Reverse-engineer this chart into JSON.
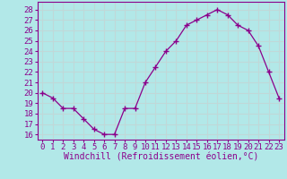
{
  "x": [
    0,
    1,
    2,
    3,
    4,
    5,
    6,
    7,
    8,
    9,
    10,
    11,
    12,
    13,
    14,
    15,
    16,
    17,
    18,
    19,
    20,
    21,
    22,
    23
  ],
  "y": [
    20.0,
    19.5,
    18.5,
    18.5,
    17.5,
    16.5,
    16.0,
    16.0,
    18.5,
    18.5,
    21.0,
    22.5,
    24.0,
    25.0,
    26.5,
    27.0,
    27.5,
    28.0,
    27.5,
    26.5,
    26.0,
    24.5,
    22.0,
    19.5
  ],
  "line_color": "#8b008b",
  "marker": "+",
  "marker_size": 4,
  "bg_color": "#b2e8e8",
  "grid_color": "#c0d8d8",
  "xlabel": "Windchill (Refroidissement éolien,°C)",
  "xlabel_color": "#8b008b",
  "ylim": [
    15.5,
    28.75
  ],
  "yticks": [
    16,
    17,
    18,
    19,
    20,
    21,
    22,
    23,
    24,
    25,
    26,
    27,
    28
  ],
  "xticks": [
    0,
    1,
    2,
    3,
    4,
    5,
    6,
    7,
    8,
    9,
    10,
    11,
    12,
    13,
    14,
    15,
    16,
    17,
    18,
    19,
    20,
    21,
    22,
    23
  ],
  "tick_label_color": "#8b008b",
  "tick_label_size": 6.5,
  "xlabel_size": 7,
  "spine_color": "#8b008b"
}
